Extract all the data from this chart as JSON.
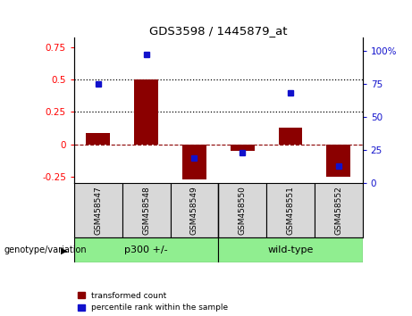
{
  "title": "GDS3598 / 1445879_at",
  "categories": [
    "GSM458547",
    "GSM458548",
    "GSM458549",
    "GSM458550",
    "GSM458551",
    "GSM458552"
  ],
  "red_values": [
    0.09,
    0.5,
    -0.27,
    -0.05,
    0.13,
    -0.25
  ],
  "blue_percentile": [
    75,
    97,
    19,
    23,
    68,
    13
  ],
  "group_labels": [
    "p300 +/-",
    "wild-type"
  ],
  "group_colors": [
    "#90EE90",
    "#90EE90"
  ],
  "ylim_left": [
    -0.3,
    0.82
  ],
  "ylim_right": [
    0,
    109.5
  ],
  "yticks_left": [
    -0.25,
    0.0,
    0.25,
    0.5,
    0.75
  ],
  "yticks_right": [
    0,
    25,
    50,
    75,
    100
  ],
  "ytick_labels_left": [
    "-0.25",
    "0",
    "0.25",
    "0.5",
    "0.75"
  ],
  "ytick_labels_right": [
    "0",
    "25",
    "50",
    "75",
    "100%"
  ],
  "hline_dashed": 0.0,
  "hlines_dotted": [
    0.25,
    0.5
  ],
  "red_color": "#8B0000",
  "blue_color": "#1111CC",
  "bar_width": 0.5,
  "legend_label_red": "transformed count",
  "legend_label_blue": "percentile rank within the sample",
  "xlabel_row_label": "genotype/variation",
  "bg_color": "#d8d8d8",
  "plot_bg_color": "#ffffff"
}
